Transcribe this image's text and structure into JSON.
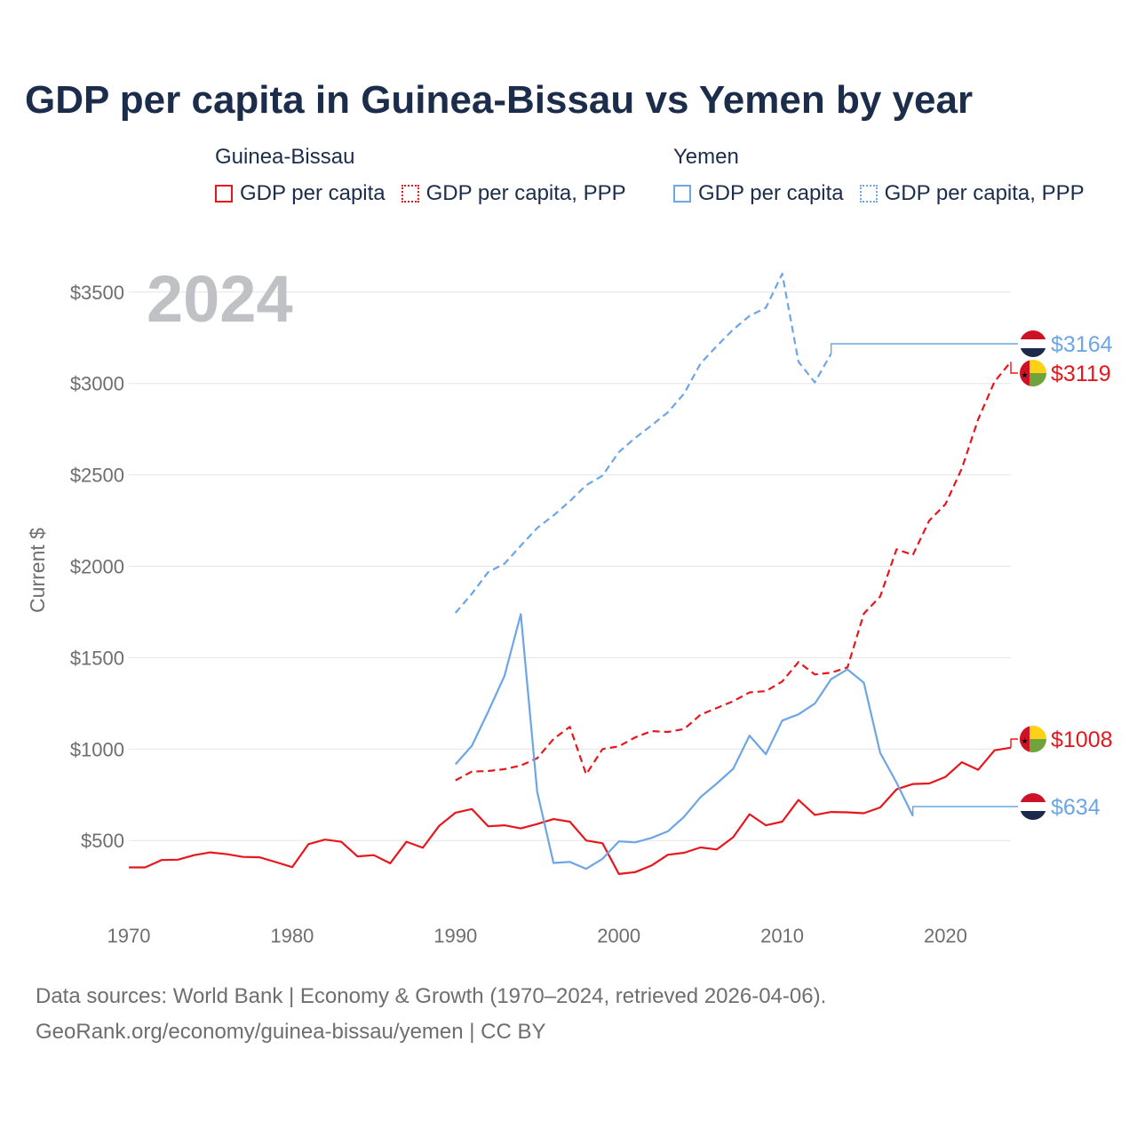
{
  "title": "GDP per capita in Guinea-Bissau vs Yemen by year",
  "legend": {
    "groups": [
      {
        "country": "Guinea-Bissau",
        "items": [
          {
            "label": "GDP per capita",
            "color": "#e8161c",
            "style": "solid"
          },
          {
            "label": "GDP per capita, PPP",
            "color": "#e8161c",
            "style": "dotted"
          }
        ]
      },
      {
        "country": "Yemen",
        "items": [
          {
            "label": "GDP per capita",
            "color": "#6ca6e6",
            "style": "solid"
          },
          {
            "label": "GDP per capita, PPP",
            "color": "#6ca6e6",
            "style": "dotted"
          }
        ]
      }
    ]
  },
  "colors": {
    "guinea_bissau": "#e8161c",
    "yemen": "#6ca6e6",
    "grid": "#e6e6e6",
    "axis_text": "#6e6e6e",
    "year_watermark": "#c0c1c4"
  },
  "footer": {
    "line1": "Data sources: World Bank | Economy & Growth (1970–2024, retrieved 2026-04-06).",
    "line2": "GeoRank.org/economy/guinea-bissau/yemen | CC BY"
  },
  "chart_data": {
    "type": "line",
    "year_label": "2024",
    "ylabel": "Current $",
    "xlabel": "",
    "xlim": [
      1970,
      2024
    ],
    "ylim": [
      190,
      3640
    ],
    "xticks": [
      1970,
      1980,
      1990,
      2000,
      2010,
      2020
    ],
    "yticks": [
      500,
      1000,
      1500,
      2000,
      2500,
      3000,
      3500
    ],
    "ytick_labels": [
      "$500",
      "$1000",
      "$1500",
      "$2000",
      "$2500",
      "$3000",
      "$3500"
    ],
    "series": [
      {
        "name": "Guinea-Bissau GDP per capita",
        "country": "Guinea-Bissau",
        "color": "#e8161c",
        "dashed": false,
        "x": [
          1970,
          1971,
          1972,
          1973,
          1974,
          1975,
          1976,
          1977,
          1978,
          1979,
          1980,
          1981,
          1982,
          1983,
          1984,
          1985,
          1986,
          1987,
          1988,
          1989,
          1990,
          1991,
          1992,
          1993,
          1994,
          1995,
          1996,
          1997,
          1998,
          1999,
          2000,
          2001,
          2002,
          2003,
          2004,
          2005,
          2006,
          2007,
          2008,
          2009,
          2010,
          2011,
          2012,
          2013,
          2014,
          2015,
          2016,
          2017,
          2018,
          2019,
          2020,
          2021,
          2022,
          2023,
          2024
        ],
        "values": [
          353,
          353,
          393,
          395,
          420,
          435,
          425,
          410,
          408,
          382,
          354,
          480,
          505,
          493,
          413,
          420,
          375,
          493,
          460,
          580,
          652,
          672,
          578,
          583,
          566,
          590,
          617,
          603,
          500,
          485,
          317,
          327,
          363,
          422,
          433,
          462,
          451,
          518,
          644,
          583,
          603,
          722,
          640,
          656,
          654,
          649,
          681,
          780,
          809,
          812,
          848,
          928,
          887,
          993,
          1008
        ],
        "end_label": "$1008"
      },
      {
        "name": "Guinea-Bissau GDP per capita, PPP",
        "country": "Guinea-Bissau",
        "color": "#e8161c",
        "dashed": true,
        "x": [
          1990,
          1991,
          1992,
          1993,
          1994,
          1995,
          1996,
          1997,
          1998,
          1999,
          2000,
          2001,
          2002,
          2003,
          2004,
          2005,
          2006,
          2007,
          2008,
          2009,
          2010,
          2011,
          2012,
          2013,
          2014,
          2015,
          2016,
          2017,
          2018,
          2019,
          2020,
          2021,
          2022,
          2023,
          2024
        ],
        "values": [
          829,
          877,
          880,
          890,
          910,
          950,
          1055,
          1122,
          862,
          1000,
          1015,
          1064,
          1098,
          1094,
          1110,
          1188,
          1225,
          1262,
          1310,
          1317,
          1370,
          1476,
          1408,
          1418,
          1447,
          1741,
          1835,
          2093,
          2062,
          2250,
          2340,
          2535,
          2804,
          3010,
          3119
        ],
        "end_label": "$3119"
      },
      {
        "name": "Yemen GDP per capita",
        "country": "Yemen",
        "color": "#6ca6e6",
        "dashed": false,
        "x": [
          1990,
          1991,
          1992,
          1993,
          1994,
          1995,
          1996,
          1997,
          1998,
          1999,
          2000,
          2001,
          2002,
          2003,
          2004,
          2005,
          2006,
          2007,
          2008,
          2009,
          2010,
          2011,
          2012,
          2013,
          2014,
          2015,
          2016,
          2017,
          2018
        ],
        "values": [
          917,
          1018,
          1205,
          1400,
          1738,
          768,
          377,
          383,
          345,
          400,
          495,
          490,
          514,
          550,
          630,
          737,
          812,
          892,
          1074,
          972,
          1156,
          1190,
          1249,
          1383,
          1436,
          1363,
          979,
          817,
          634
        ],
        "end_label": "$634"
      },
      {
        "name": "Yemen GDP per capita, PPP",
        "country": "Yemen",
        "color": "#6ca6e6",
        "dashed": true,
        "x": [
          1990,
          1991,
          1992,
          1993,
          1994,
          1995,
          1996,
          1997,
          1998,
          1999,
          2000,
          2001,
          2002,
          2003,
          2004,
          2005,
          2006,
          2007,
          2008,
          2009,
          2010,
          2011,
          2012,
          2013
        ],
        "values": [
          1745,
          1850,
          1968,
          2014,
          2113,
          2209,
          2278,
          2356,
          2443,
          2496,
          2625,
          2702,
          2770,
          2842,
          2945,
          3109,
          3205,
          3295,
          3370,
          3414,
          3600,
          3119,
          3006,
          3164
        ],
        "end_label": "$3164"
      }
    ]
  }
}
